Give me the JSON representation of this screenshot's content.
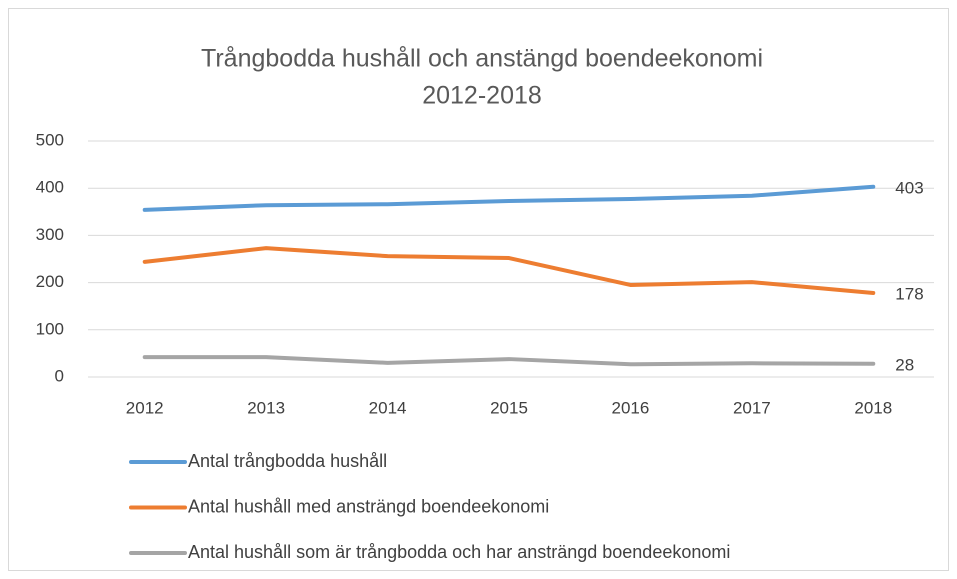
{
  "chart_data": {
    "type": "line",
    "title": [
      "Trångbodda hushåll och anstängd boendeekonomi",
      "2012-2018"
    ],
    "categories": [
      "2012",
      "2013",
      "2014",
      "2015",
      "2016",
      "2017",
      "2018"
    ],
    "series": [
      {
        "name": "Antal trångbodda hushåll",
        "color": "#5b9bd5",
        "values": [
          354,
          364,
          366,
          373,
          377,
          384,
          403
        ]
      },
      {
        "name": "Antal hushåll med ansträngd boendeekonomi",
        "color": "#ed7d31",
        "values": [
          244,
          273,
          256,
          252,
          195,
          201,
          178
        ]
      },
      {
        "name": "Antal hushåll som är trångbodda och har ansträngd boendeekonomi",
        "color": "#a5a5a5",
        "values": [
          42,
          42,
          30,
          38,
          27,
          29,
          28
        ]
      }
    ],
    "ylim": [
      0,
      500
    ],
    "yticks": [
      0,
      100,
      200,
      300,
      400,
      500
    ],
    "grid": true,
    "legend": "bottom",
    "data_labels": "last"
  }
}
